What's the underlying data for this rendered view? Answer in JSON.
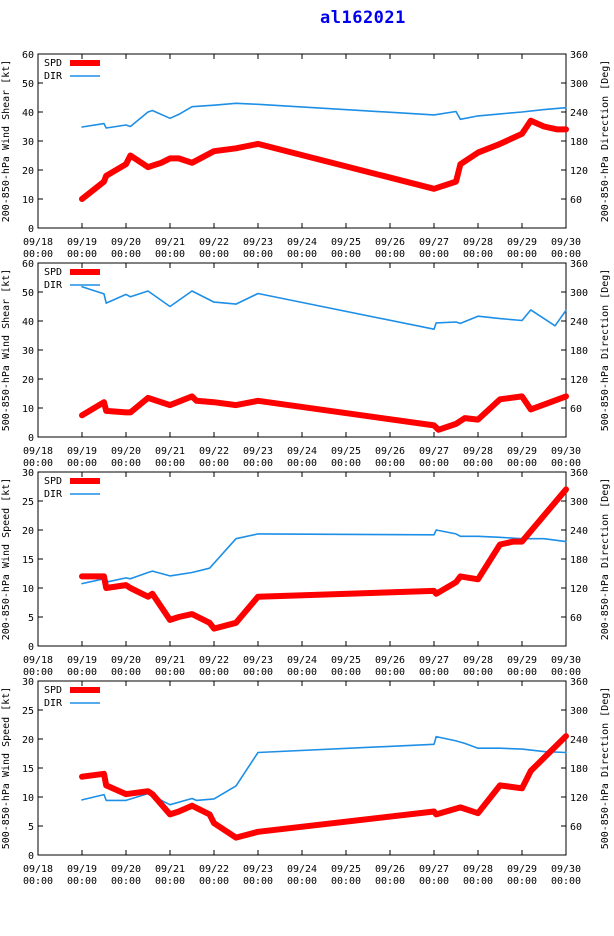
{
  "title": "al162021",
  "colors": {
    "spd": "#ff0000",
    "dir": "#1e8fe6",
    "title": "#0000ee",
    "axis": "#000000"
  },
  "legend": {
    "spd": "SPD",
    "dir": "DIR"
  },
  "chart_data": [
    {
      "type": "line",
      "ylabel_left": "200-850-hPa Wind Shear [kt]",
      "ylabel_right": "200-850-hPa Direction [Deg]",
      "ylim_left": [
        0,
        60
      ],
      "ylim_right": [
        0,
        360
      ],
      "yticks_left": [
        0,
        10,
        20,
        30,
        40,
        50,
        60
      ],
      "yticks_right": [
        60,
        120,
        180,
        240,
        300,
        360
      ],
      "x_ticks": [
        "09/18\n00:00",
        "09/19\n00:00",
        "09/20\n00:00",
        "09/21\n00:00",
        "09/22\n00:00",
        "09/23\n00:00",
        "09/24\n00:00",
        "09/25\n00:00",
        "09/26\n00:00",
        "09/27\n00:00",
        "09/28\n00:00",
        "09/29\n00:00",
        "09/30\n00:00"
      ],
      "xlim_days": [
        0,
        12
      ],
      "series": [
        {
          "name": "SPD",
          "axis": "left",
          "x": [
            1.0,
            1.5,
            1.55,
            2.0,
            2.1,
            2.5,
            2.8,
            3.0,
            3.2,
            3.5,
            4.0,
            4.5,
            5.0,
            9.0,
            9.5,
            9.6,
            10.0,
            10.5,
            11.0,
            11.2,
            11.5,
            11.8,
            12.0
          ],
          "values": [
            10,
            16,
            18,
            22,
            25,
            21,
            22.5,
            24,
            24,
            22.5,
            26.5,
            27.5,
            29,
            13.5,
            16,
            22,
            26,
            29,
            32.5,
            37,
            35,
            34,
            34
          ]
        },
        {
          "name": "DIR",
          "axis": "right",
          "x": [
            1.0,
            1.5,
            1.55,
            2.0,
            2.1,
            2.5,
            2.6,
            3.0,
            3.2,
            3.5,
            4.0,
            4.5,
            5.0,
            9.0,
            9.5,
            9.6,
            10.0,
            10.5,
            11.0,
            11.5,
            12.0
          ],
          "values": [
            209,
            216,
            207,
            213,
            210,
            240,
            243,
            227,
            235,
            251,
            254,
            258,
            256,
            234,
            241,
            225,
            232,
            236,
            240,
            245,
            249
          ]
        }
      ]
    },
    {
      "type": "line",
      "ylabel_left": "500-850-hPa Wind Shear [kt]",
      "ylabel_right": "500-850-hPa Direction [Deg]",
      "ylim_left": [
        0,
        60
      ],
      "ylim_right": [
        0,
        360
      ],
      "yticks_left": [
        0,
        10,
        20,
        30,
        40,
        50,
        60
      ],
      "yticks_right": [
        60,
        120,
        180,
        240,
        300,
        360
      ],
      "x_ticks": [
        "09/18\n00:00",
        "09/19\n00:00",
        "09/20\n00:00",
        "09/21\n00:00",
        "09/22\n00:00",
        "09/23\n00:00",
        "09/24\n00:00",
        "09/25\n00:00",
        "09/26\n00:00",
        "09/27\n00:00",
        "09/28\n00:00",
        "09/29\n00:00",
        "09/30\n00:00"
      ],
      "xlim_days": [
        0,
        12
      ],
      "series": [
        {
          "name": "SPD",
          "axis": "left",
          "x": [
            1.0,
            1.5,
            1.55,
            2.0,
            2.1,
            2.5,
            3.0,
            3.5,
            3.6,
            4.0,
            4.5,
            5.0,
            9.0,
            9.1,
            9.5,
            9.7,
            10.0,
            10.5,
            11.0,
            11.2,
            12.0
          ],
          "values": [
            7.5,
            12,
            9,
            8.5,
            8.5,
            13.5,
            11,
            14,
            12.5,
            12,
            11,
            12.5,
            4,
            2.5,
            4.5,
            6.5,
            6,
            13,
            14,
            9.5,
            14
          ]
        },
        {
          "name": "DIR",
          "axis": "right",
          "x": [
            1.0,
            1.5,
            1.55,
            2.0,
            2.1,
            2.5,
            3.0,
            3.5,
            4.0,
            4.5,
            5.0,
            9.0,
            9.05,
            9.5,
            9.6,
            10.0,
            10.5,
            11.0,
            11.2,
            11.5,
            11.75,
            12.0
          ],
          "values": [
            311,
            296,
            277,
            295,
            290,
            302,
            270,
            302,
            279,
            275,
            297,
            223,
            236,
            238,
            235,
            250,
            245,
            241,
            263,
            245,
            230,
            262
          ]
        }
      ]
    },
    {
      "type": "line",
      "ylabel_left": "200-850-hPa Wind Speed [kt]",
      "ylabel_right": "200-850-hPa Direction [Deg]",
      "ylim_left": [
        0,
        30
      ],
      "ylim_right": [
        0,
        360
      ],
      "yticks_left": [
        0,
        5,
        10,
        15,
        20,
        25,
        30
      ],
      "yticks_right": [
        60,
        120,
        180,
        240,
        300,
        360
      ],
      "x_ticks": [
        "09/18\n00:00",
        "09/19\n00:00",
        "09/20\n00:00",
        "09/21\n00:00",
        "09/22\n00:00",
        "09/23\n00:00",
        "09/24\n00:00",
        "09/25\n00:00",
        "09/26\n00:00",
        "09/27\n00:00",
        "09/28\n00:00",
        "09/29\n00:00",
        "09/30\n00:00"
      ],
      "xlim_days": [
        0,
        12
      ],
      "series": [
        {
          "name": "SPD",
          "axis": "left",
          "x": [
            1.0,
            1.5,
            1.55,
            2.0,
            2.1,
            2.5,
            2.6,
            3.0,
            3.2,
            3.5,
            3.9,
            4.0,
            4.5,
            5.0,
            9.0,
            9.05,
            9.5,
            9.6,
            10.0,
            10.5,
            10.8,
            11.0,
            12.0
          ],
          "values": [
            12,
            12,
            10,
            10.5,
            10,
            8.5,
            9,
            4.5,
            5,
            5.5,
            4,
            3,
            4,
            8.5,
            9.5,
            9,
            11,
            12,
            11.5,
            17.5,
            18,
            18,
            27
          ]
        },
        {
          "name": "DIR",
          "axis": "right",
          "x": [
            1.0,
            1.5,
            1.6,
            2.0,
            2.1,
            2.5,
            2.6,
            3.0,
            3.5,
            3.9,
            4.5,
            5.0,
            9.0,
            9.05,
            9.5,
            9.6,
            10.0,
            10.5,
            11.0,
            11.5,
            12.0
          ],
          "values": [
            129,
            139,
            133,
            141,
            139,
            152,
            155,
            145,
            152,
            161,
            222,
            232,
            230,
            240,
            232,
            227,
            227,
            225,
            222,
            222,
            216
          ]
        }
      ]
    },
    {
      "type": "line",
      "ylabel_left": "500-850-hPa Wind Speed [kt]",
      "ylabel_right": "500-850-hPa Direction [Deg]",
      "ylim_left": [
        0,
        30
      ],
      "ylim_right": [
        0,
        360
      ],
      "yticks_left": [
        0,
        5,
        10,
        15,
        20,
        25,
        30
      ],
      "yticks_right": [
        60,
        120,
        180,
        240,
        300,
        360
      ],
      "x_ticks": [
        "09/18\n00:00",
        "09/19\n00:00",
        "09/20\n00:00",
        "09/21\n00:00",
        "09/22\n00:00",
        "09/23\n00:00",
        "09/24\n00:00",
        "09/25\n00:00",
        "09/26\n00:00",
        "09/27\n00:00",
        "09/28\n00:00",
        "09/29\n00:00",
        "09/30\n00:00"
      ],
      "xlim_days": [
        0,
        12
      ],
      "series": [
        {
          "name": "SPD",
          "axis": "left",
          "x": [
            1.0,
            1.5,
            1.55,
            2.0,
            2.5,
            2.6,
            3.0,
            3.2,
            3.5,
            3.9,
            4.0,
            4.5,
            5.0,
            9.0,
            9.05,
            9.5,
            9.6,
            10.0,
            10.5,
            11.0,
            11.2,
            12.0
          ],
          "values": [
            13.5,
            14,
            12,
            10.5,
            11,
            10.5,
            7,
            7.5,
            8.5,
            7,
            5.5,
            3,
            4,
            7.5,
            7,
            8,
            8.2,
            7.2,
            12,
            11.5,
            14.5,
            20.5
          ]
        },
        {
          "name": "DIR",
          "axis": "right",
          "x": [
            1.0,
            1.5,
            1.55,
            2.0,
            2.5,
            2.6,
            3.0,
            3.5,
            3.6,
            4.0,
            4.5,
            5.0,
            9.0,
            9.05,
            9.5,
            9.7,
            10.0,
            10.5,
            11.0,
            11.5,
            12.0
          ],
          "values": [
            114,
            125,
            113,
            113,
            127,
            122,
            104,
            117,
            113,
            116,
            143,
            212,
            229,
            245,
            236,
            231,
            221,
            221,
            219,
            214,
            212
          ]
        }
      ]
    }
  ]
}
